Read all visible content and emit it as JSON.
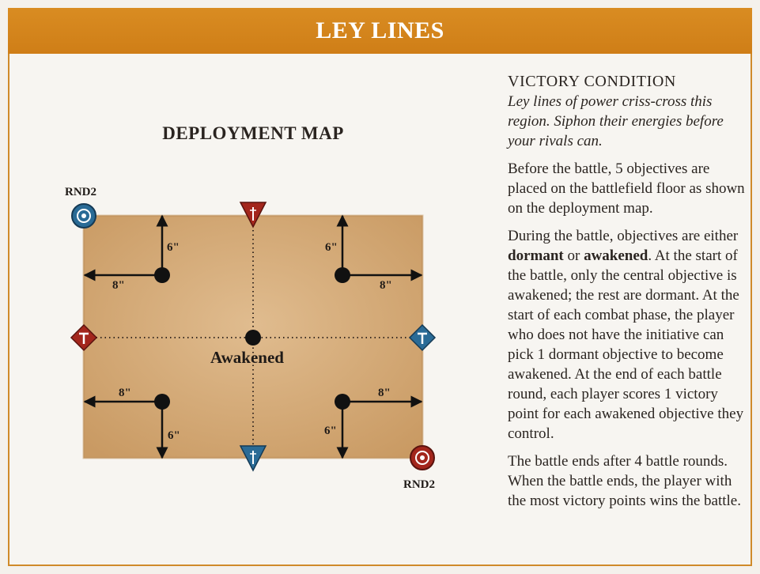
{
  "header": {
    "title": "LEY LINES"
  },
  "map": {
    "title": "DEPLOYMENT MAP",
    "round_label_top": "RND2",
    "round_label_bottom": "RND2",
    "awakened_label": "Awakened",
    "dist_6": "6\"",
    "dist_8": "8\"",
    "colors": {
      "red": "#a3261c",
      "blue": "#2a6b96",
      "board": "#d9b385"
    },
    "icons": [
      "skull-emblem-icon",
      "hammer-icon",
      "dagger-icon"
    ]
  },
  "victory": {
    "heading": "VICTORY CONDITION",
    "flavor": "Ley lines of power criss-cross this region. Siphon their energies before your rivals can.",
    "para1": "Before the battle, 5 objectives are placed on the battlefield floor as shown on the deployment map.",
    "para2_a": "During the battle, objectives are either ",
    "para2_dormant": "dormant",
    "para2_or": " or ",
    "para2_awakened": "awakened",
    "para2_b": ". At the start of the battle, only the central objective is awakened; the rest are dormant. At the start of each combat phase, the player who does not have the initiative can pick 1 dormant objective to become awakened. At the end of each battle round, each player scores 1 victory point for each awakened objective they control.",
    "para3": "The battle ends after 4 battle rounds. When the battle ends, the player with the most victory points wins the battle."
  }
}
